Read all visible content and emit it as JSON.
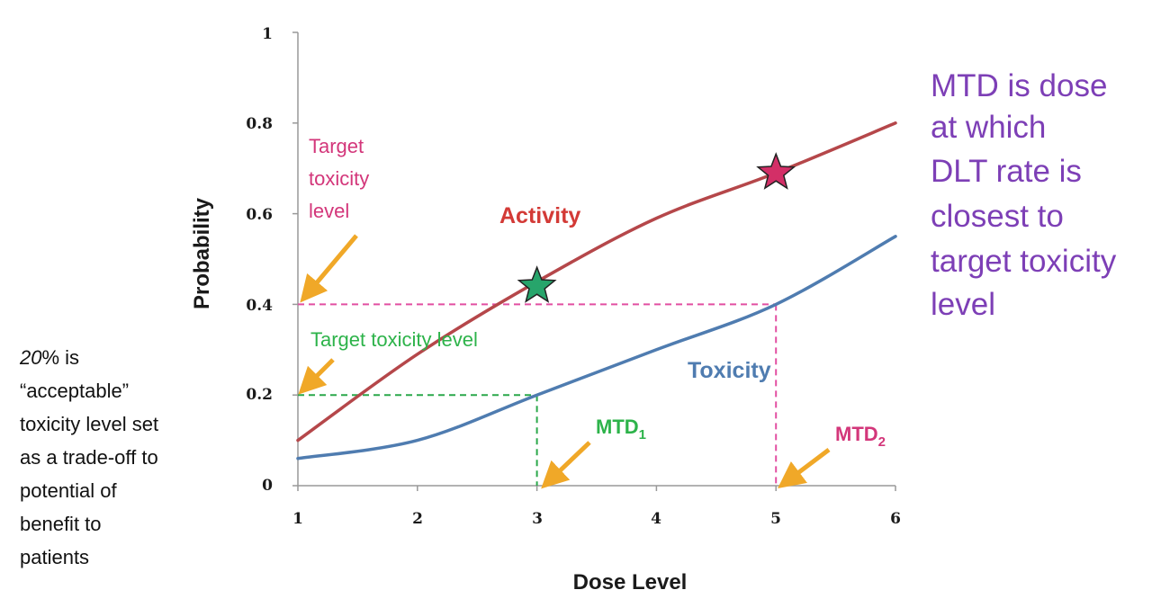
{
  "chart_data": {
    "type": "line",
    "xlabel": "Dose Level",
    "ylabel": "Probability",
    "xlim": [
      1,
      6
    ],
    "ylim": [
      0,
      1
    ],
    "x_ticks": [
      "1",
      "2",
      "3",
      "4",
      "5",
      "6"
    ],
    "y_ticks": [
      "0",
      "0.2",
      "0.4",
      "0.6",
      "0.8",
      "1"
    ],
    "grid": false,
    "series": [
      {
        "name": "Activity",
        "color": "#b5474a",
        "x": [
          1,
          2,
          3,
          4,
          5,
          6
        ],
        "y": [
          0.1,
          0.29,
          0.45,
          0.59,
          0.69,
          0.8
        ]
      },
      {
        "name": "Toxicity",
        "color": "#4f7cb0",
        "x": [
          1,
          2,
          3,
          4,
          5,
          6
        ],
        "y": [
          0.06,
          0.1,
          0.2,
          0.3,
          0.4,
          0.55
        ]
      }
    ],
    "markers": [
      {
        "name": "green-star",
        "x": 3,
        "y": 0.44,
        "color": "#27a56b"
      },
      {
        "name": "pink-star",
        "x": 5,
        "y": 0.69,
        "color": "#d32f67"
      }
    ],
    "reference_lines": [
      {
        "name": "target-0.2",
        "y": 0.2,
        "x_end": 3,
        "color": "#2aa84a"
      },
      {
        "name": "target-0.4",
        "y": 0.4,
        "x_end": 5,
        "color": "#e24fa2"
      }
    ],
    "annotations": {
      "target_pink": [
        "Target",
        "toxicity",
        "level"
      ],
      "target_green": "Target toxicity level",
      "mtd1_base": "MTD",
      "mtd1_sub": "1",
      "mtd2_base": "MTD",
      "mtd2_sub": "2",
      "left_note_italic": "20",
      "left_note_lines": [
        "% is",
        "“acceptable”",
        "toxicity  level set",
        "as a trade-off to",
        "potential of",
        "benefit to",
        "patients"
      ],
      "right_note": [
        "MTD is dose",
        "at which",
        "DLT rate is",
        "closest to",
        "target toxicity",
        "level"
      ]
    },
    "colors": {
      "pink_text": "#d3367a",
      "green_text": "#2db34a",
      "activity_text": "#d33a36",
      "toxicity_text": "#4f7cb0",
      "arrow": "#f0a828",
      "purple_text": "#7d3fb6"
    }
  }
}
